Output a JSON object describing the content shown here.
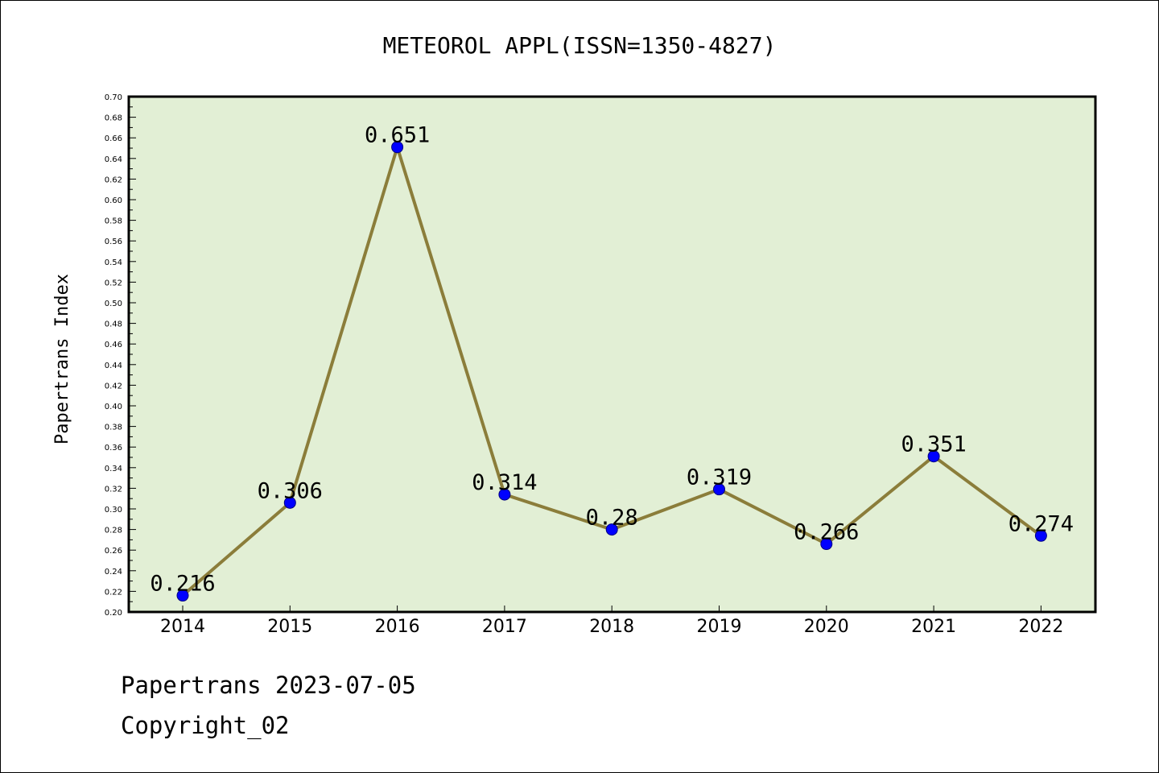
{
  "chart_data": {
    "type": "line",
    "title": "METEOROL APPL(ISSN=1350-4827)",
    "xlabel": "",
    "ylabel": "Papertrans Index",
    "categories": [
      "2014",
      "2015",
      "2016",
      "2017",
      "2018",
      "2019",
      "2020",
      "2021",
      "2022"
    ],
    "series": [
      {
        "values": [
          0.216,
          0.306,
          0.651,
          0.314,
          0.28,
          0.319,
          0.266,
          0.351,
          0.274
        ],
        "labels": [
          "0.216",
          "0.306",
          "0.651",
          "0.314",
          "0.28",
          "0.319",
          "0.266",
          "0.351",
          "0.274"
        ]
      }
    ],
    "ylim": [
      0.2,
      0.7
    ],
    "ytick_step": 0.02,
    "ytick_labels": [
      "0.20",
      "0.22",
      "0.24",
      "0.26",
      "0.28",
      "0.30",
      "0.32",
      "0.34",
      "0.36",
      "0.38",
      "0.40",
      "0.42",
      "0.44",
      "0.46",
      "0.48",
      "0.50",
      "0.52",
      "0.54",
      "0.56",
      "0.58",
      "0.60",
      "0.62",
      "0.64",
      "0.66",
      "0.68",
      "0.70"
    ],
    "grid": false,
    "legend": "none",
    "colors": {
      "plot_background": "#e2efd5",
      "line": "#8b7d3a",
      "marker_fill": "#0000ff",
      "marker_stroke": "#000080",
      "axes": "#000000"
    }
  },
  "footer": {
    "line1": "Papertrans 2023-07-05",
    "line2": "Copyright_02"
  }
}
